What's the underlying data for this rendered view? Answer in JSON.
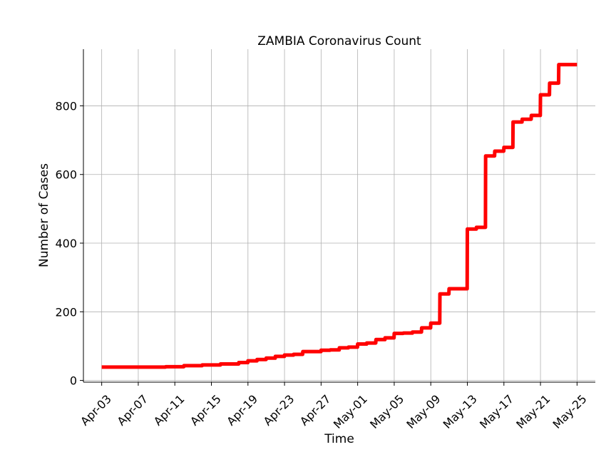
{
  "chart_data": {
    "type": "line",
    "title": "ZAMBIA Coronavirus Count",
    "xlabel": "Time",
    "ylabel": "Number of Cases",
    "x_tick_labels": [
      "Apr-03",
      "Apr-07",
      "Apr-11",
      "Apr-15",
      "Apr-19",
      "Apr-23",
      "Apr-27",
      "May-01",
      "May-05",
      "May-09",
      "May-13",
      "May-17",
      "May-21",
      "May-25"
    ],
    "y_ticks": [
      0,
      200,
      400,
      600,
      800
    ],
    "ylim": [
      -5,
      965
    ],
    "xlim": [
      "2020-04-01",
      "2020-05-27"
    ],
    "grid": true,
    "line_color": "#ff0000",
    "series": [
      {
        "x": [
          "2020-04-03",
          "2020-04-04",
          "2020-04-05",
          "2020-04-06",
          "2020-04-07",
          "2020-04-08",
          "2020-04-09",
          "2020-04-10",
          "2020-04-11",
          "2020-04-12",
          "2020-04-13",
          "2020-04-14",
          "2020-04-15",
          "2020-04-16",
          "2020-04-17",
          "2020-04-18",
          "2020-04-19",
          "2020-04-20",
          "2020-04-21",
          "2020-04-22",
          "2020-04-23",
          "2020-04-24",
          "2020-04-25",
          "2020-04-26",
          "2020-04-27",
          "2020-04-28",
          "2020-04-29",
          "2020-04-30",
          "2020-05-01",
          "2020-05-02",
          "2020-05-03",
          "2020-05-04",
          "2020-05-05",
          "2020-05-06",
          "2020-05-07",
          "2020-05-08",
          "2020-05-09",
          "2020-05-10",
          "2020-05-11",
          "2020-05-12",
          "2020-05-13",
          "2020-05-14",
          "2020-05-15",
          "2020-05-16",
          "2020-05-17",
          "2020-05-18",
          "2020-05-19",
          "2020-05-20",
          "2020-05-21",
          "2020-05-22",
          "2020-05-23",
          "2020-05-24",
          "2020-05-25"
        ],
        "values": [
          39,
          39,
          39,
          39,
          39,
          39,
          39,
          40,
          40,
          43,
          43,
          45,
          45,
          48,
          48,
          52,
          57,
          61,
          65,
          70,
          74,
          76,
          84,
          84,
          88,
          89,
          95,
          97,
          106,
          109,
          119,
          124,
          137,
          138,
          141,
          153,
          167,
          252,
          267,
          267,
          441,
          446,
          654,
          668,
          679,
          753,
          761,
          772,
          832,
          866,
          920,
          920,
          920
        ]
      }
    ]
  }
}
